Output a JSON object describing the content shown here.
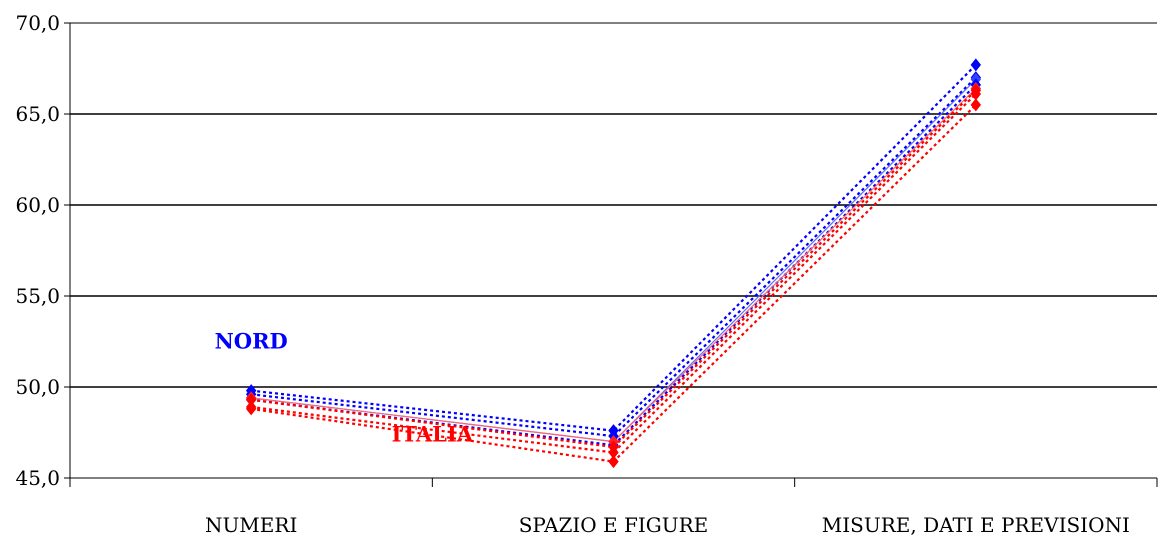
{
  "chart_data": {
    "type": "line",
    "categories": [
      "NUMERI",
      "SPAZIO E FIGURE",
      "MISURE, DATI E PREVISIONI"
    ],
    "ylim": [
      45,
      70
    ],
    "yticks": [
      "45,0",
      "50,0",
      "55,0",
      "60,0",
      "65,0",
      "70,0"
    ],
    "ytick_values": [
      45,
      50,
      55,
      60,
      65,
      70
    ],
    "grid": true,
    "series": [
      {
        "group": "nord",
        "style": "dotted",
        "color": "#0000ff",
        "values": [
          49.8,
          47.6,
          67.7
        ]
      },
      {
        "group": "nord",
        "style": "dotted",
        "color": "#0000ff",
        "values": [
          49.6,
          47.3,
          67.0
        ]
      },
      {
        "group": "nord",
        "style": "solid",
        "color": "#5b6cff",
        "values": [
          49.4,
          47.0,
          66.9
        ]
      },
      {
        "group": "nord",
        "style": "dotted",
        "color": "#0000ff",
        "values": [
          49.3,
          46.8,
          66.6
        ]
      },
      {
        "group": "italia",
        "style": "solid",
        "color": "#ff6666",
        "values": [
          49.4,
          47.0,
          66.4
        ]
      },
      {
        "group": "italia",
        "style": "dotted",
        "color": "#ff0000",
        "values": [
          49.3,
          46.7,
          66.3
        ]
      },
      {
        "group": "italia",
        "style": "dotted",
        "color": "#ff0000",
        "values": [
          48.9,
          46.4,
          66.1
        ]
      },
      {
        "group": "italia",
        "style": "dotted",
        "color": "#ff0000",
        "values": [
          48.8,
          45.9,
          65.5
        ]
      }
    ],
    "annotations": [
      {
        "text": "NORD",
        "color": "#0000ff",
        "x_category": 0,
        "y": 52.5
      },
      {
        "text": "ITALIA",
        "color": "#ff0000",
        "x_category": 0.5,
        "y": 47.4
      }
    ]
  }
}
